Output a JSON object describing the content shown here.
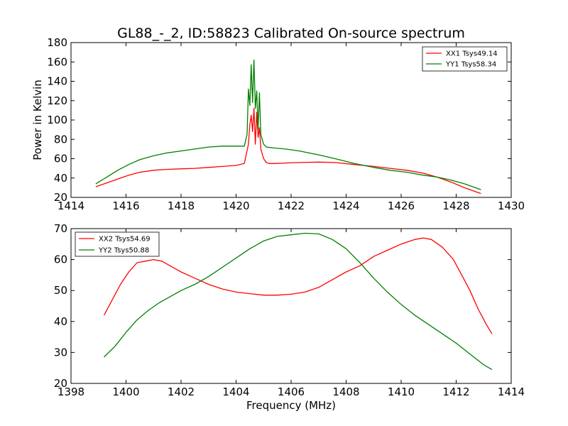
{
  "figure": {
    "title": "GL88_-_2, ID:58823 Calibrated On-source spectrum",
    "background": "#ffffff"
  },
  "chart_data": [
    {
      "type": "line",
      "title": "",
      "xlabel": "",
      "ylabel": "Power in Kelvin",
      "xlim": [
        1414,
        1430
      ],
      "ylim": [
        20,
        180
      ],
      "xticks": [
        1414,
        1416,
        1418,
        1420,
        1422,
        1424,
        1426,
        1428,
        1430
      ],
      "yticks": [
        20,
        40,
        60,
        80,
        100,
        120,
        140,
        160,
        180
      ],
      "legend_placement": "top-right",
      "grid": false,
      "series": [
        {
          "name": "XX1 Tsys49.14",
          "color": "#ff0000",
          "x": [
            1414.9,
            1415.3,
            1415.7,
            1416.1,
            1416.5,
            1417.0,
            1417.5,
            1418.0,
            1418.5,
            1419.0,
            1419.5,
            1420.0,
            1420.3,
            1420.45,
            1420.5,
            1420.55,
            1420.6,
            1420.65,
            1420.7,
            1420.75,
            1420.8,
            1420.85,
            1420.9,
            1420.95,
            1421.0,
            1421.1,
            1421.2,
            1421.4,
            1421.8,
            1422.3,
            1423.0,
            1423.6,
            1424.3,
            1425.0,
            1425.6,
            1426.2,
            1426.8,
            1427.3,
            1427.8,
            1428.3,
            1428.9
          ],
          "y": [
            31,
            35,
            39,
            43,
            46,
            48,
            49,
            49.5,
            50,
            51,
            52,
            53,
            55,
            75,
            95,
            105,
            88,
            112,
            75,
            108,
            82,
            92,
            70,
            65,
            60,
            56,
            55,
            55,
            55.5,
            56,
            56.5,
            56,
            54,
            52,
            50,
            48,
            45,
            41,
            36,
            30,
            24
          ]
        },
        {
          "name": "YY1 Tsys58.34",
          "color": "#008000",
          "x": [
            1414.9,
            1415.3,
            1415.7,
            1416.1,
            1416.5,
            1417.0,
            1417.5,
            1418.0,
            1418.5,
            1419.0,
            1419.5,
            1420.0,
            1420.3,
            1420.4,
            1420.45,
            1420.5,
            1420.55,
            1420.6,
            1420.65,
            1420.7,
            1420.75,
            1420.8,
            1420.85,
            1420.9,
            1420.95,
            1421.0,
            1421.1,
            1421.4,
            1421.8,
            1422.3,
            1423.0,
            1423.6,
            1424.3,
            1425.0,
            1425.6,
            1426.2,
            1426.8,
            1427.3,
            1427.8,
            1428.3,
            1428.9
          ],
          "y": [
            34,
            41,
            48,
            54,
            59,
            63,
            66,
            68,
            70,
            72,
            73,
            73,
            73,
            85,
            132,
            115,
            157,
            118,
            162,
            112,
            130,
            90,
            128,
            85,
            80,
            75,
            72,
            71,
            70,
            68,
            64,
            60,
            55,
            51,
            48,
            46,
            43,
            41,
            38,
            34,
            28
          ]
        }
      ]
    },
    {
      "type": "line",
      "title": "",
      "xlabel": "Frequency (MHz)",
      "ylabel": "",
      "xlim": [
        1398,
        1414
      ],
      "ylim": [
        20,
        70
      ],
      "xticks": [
        1398,
        1400,
        1402,
        1404,
        1406,
        1408,
        1410,
        1412,
        1414
      ],
      "yticks": [
        20,
        30,
        40,
        50,
        60,
        70
      ],
      "legend_placement": "top-left",
      "grid": false,
      "series": [
        {
          "name": "XX2 Tsys54.69",
          "color": "#ff0000",
          "x": [
            1399.2,
            1399.5,
            1399.8,
            1400.1,
            1400.4,
            1400.7,
            1401.0,
            1401.3,
            1401.6,
            1402.0,
            1402.5,
            1403.0,
            1403.5,
            1404.0,
            1404.5,
            1405.0,
            1405.5,
            1406.0,
            1406.5,
            1407.0,
            1407.5,
            1408.0,
            1408.5,
            1409.0,
            1409.5,
            1410.0,
            1410.5,
            1410.8,
            1411.1,
            1411.5,
            1411.9,
            1412.2,
            1412.5,
            1412.8,
            1413.1,
            1413.3
          ],
          "y": [
            42,
            47,
            52,
            56,
            59,
            59.5,
            60,
            59.5,
            58,
            56,
            54,
            52,
            50.5,
            49.5,
            49,
            48.5,
            48.5,
            48.8,
            49.5,
            51,
            53.5,
            56,
            58,
            61,
            63,
            65,
            66.5,
            67,
            66.5,
            64,
            60,
            55,
            50,
            44,
            39,
            36
          ]
        },
        {
          "name": "YY2 Tsys50.88",
          "color": "#008000",
          "x": [
            1399.2,
            1399.6,
            1400.0,
            1400.4,
            1400.8,
            1401.2,
            1401.6,
            1402.0,
            1402.5,
            1403.0,
            1403.5,
            1404.0,
            1404.5,
            1405.0,
            1405.5,
            1406.0,
            1406.5,
            1407.0,
            1407.5,
            1408.0,
            1408.5,
            1409.0,
            1409.5,
            1410.0,
            1410.5,
            1411.0,
            1411.5,
            1412.0,
            1412.5,
            1413.0,
            1413.3
          ],
          "y": [
            28.5,
            32,
            36.5,
            40.5,
            43.5,
            46,
            48,
            50,
            52,
            54.5,
            57.5,
            60.5,
            63.5,
            66,
            67.5,
            68,
            68.5,
            68.3,
            66.5,
            63.5,
            59,
            54,
            49.5,
            45.5,
            42,
            39,
            36,
            33,
            29.5,
            26,
            24.5
          ]
        }
      ]
    }
  ]
}
